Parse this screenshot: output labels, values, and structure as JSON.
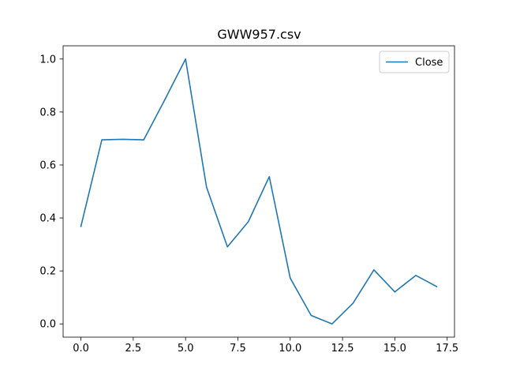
{
  "chart_data": {
    "type": "line",
    "title": "GWW957.csv",
    "xlabel": "",
    "ylabel": "",
    "xlim": [
      -0.85,
      17.85
    ],
    "ylim": [
      -0.05,
      1.05
    ],
    "x_ticks": [
      0.0,
      2.5,
      5.0,
      7.5,
      10.0,
      12.5,
      15.0,
      17.5
    ],
    "x_tick_labels": [
      "0.0",
      "2.5",
      "5.0",
      "7.5",
      "10.0",
      "12.5",
      "15.0",
      "17.5"
    ],
    "y_ticks": [
      0.0,
      0.2,
      0.4,
      0.6,
      0.8,
      1.0
    ],
    "y_tick_labels": [
      "0.0",
      "0.2",
      "0.4",
      "0.6",
      "0.8",
      "1.0"
    ],
    "grid": false,
    "legend_position": "top-right",
    "series": [
      {
        "name": "Close",
        "color": "#1f77b4",
        "x": [
          0,
          1,
          2,
          3,
          4,
          5,
          6,
          7,
          8,
          9,
          10,
          11,
          12,
          13,
          14,
          15,
          16,
          17
        ],
        "values": [
          0.368,
          0.695,
          0.697,
          0.695,
          0.845,
          1.0,
          0.517,
          0.291,
          0.386,
          0.556,
          0.173,
          0.032,
          0.0,
          0.078,
          0.204,
          0.121,
          0.183,
          0.141
        ]
      }
    ]
  }
}
